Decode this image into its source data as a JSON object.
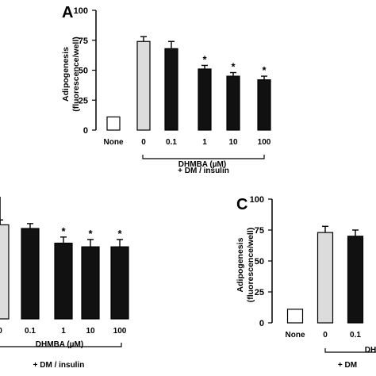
{
  "chart_data": [
    {
      "type": "bar",
      "panel_label": "A",
      "ylabel": "Adipogenesis\n(fluorescence/well)",
      "ylim": [
        0,
        100
      ],
      "yticks": [
        "0",
        "25",
        "50",
        "75",
        "100"
      ],
      "categories": [
        "None",
        "0",
        "0.1",
        "1",
        "10",
        "100"
      ],
      "values": [
        11,
        74,
        68,
        51,
        45,
        42
      ],
      "errors": [
        0,
        4,
        6,
        3,
        3,
        3
      ],
      "significant": [
        false,
        false,
        false,
        true,
        true,
        true
      ],
      "bar_colors": [
        "#ffffff",
        "#dcdcdc",
        "#111111",
        "#111111",
        "#111111",
        "#111111"
      ],
      "xlabel": "DHMBA (µM)",
      "treatment_label": "+ DM / insulin"
    },
    {
      "type": "bar",
      "panel_label": "",
      "ylim": [
        0,
        100
      ],
      "categories": [
        "0",
        "0.1",
        "1",
        "10",
        "100"
      ],
      "values": [
        77,
        74,
        62,
        59,
        59
      ],
      "errors": [
        4,
        4,
        5,
        6,
        6
      ],
      "significant": [
        false,
        false,
        true,
        true,
        true
      ],
      "bar_colors": [
        "#dcdcdc",
        "#111111",
        "#111111",
        "#111111",
        "#111111"
      ],
      "xlabel": "DHMBA (µM)",
      "treatment_label": "+ DM / insulin"
    },
    {
      "type": "bar",
      "panel_label": "C",
      "ylabel": "Adipogenesis\n(fluorescence/well)",
      "ylim": [
        0,
        100
      ],
      "yticks": [
        "0",
        "25",
        "50",
        "75",
        "100"
      ],
      "categories": [
        "None",
        "0",
        "0.1"
      ],
      "values": [
        11,
        73,
        70
      ],
      "errors": [
        0,
        5,
        5
      ],
      "significant": [
        false,
        false,
        false
      ],
      "bar_colors": [
        "#ffffff",
        "#dcdcdc",
        "#111111"
      ],
      "xlabel_partial": "DH",
      "treatment_label_partial": "+ DM"
    }
  ],
  "star_symbol": "*"
}
